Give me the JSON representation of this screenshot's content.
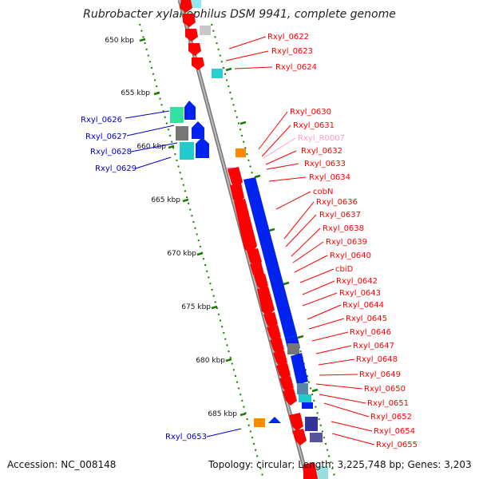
{
  "title": "Rubrobacter xylanophilus DSM 9941, complete genome",
  "accession": "Accession: NC_008148",
  "topology": "Topology: circular; Length: 3,225,748 bp; Genes: 3,203",
  "colors": {
    "forward_gene": "#ff0000",
    "reverse_gene": "#0000ff",
    "rna": "#ff66cc",
    "backbone": "#888888",
    "tick": "#1a7a00"
  },
  "scale_labels": [
    "650 kbp",
    "655 kbp",
    "660 kbp",
    "665 kbp",
    "670 kbp",
    "675 kbp",
    "680 kbp",
    "685 kbp"
  ],
  "right_labels": [
    {
      "text": "Rxyl_0622",
      "color": "#ff0000"
    },
    {
      "text": "Rxyl_0623",
      "color": "#ff0000"
    },
    {
      "text": "Rxyl_0624",
      "color": "#ff0000"
    },
    {
      "text": "Rxyl_0630",
      "color": "#ff0000"
    },
    {
      "text": "Rxyl_0631",
      "color": "#ff0000"
    },
    {
      "text": "Rxyl_R0007",
      "color": "#ff99cc"
    },
    {
      "text": "Rxyl_0632",
      "color": "#ff0000"
    },
    {
      "text": "Rxyl_0633",
      "color": "#ff0000"
    },
    {
      "text": "Rxyl_0634",
      "color": "#ff0000"
    },
    {
      "text": "cobN",
      "color": "#ff0000"
    },
    {
      "text": "Rxyl_0636",
      "color": "#ff0000"
    },
    {
      "text": "Rxyl_0637",
      "color": "#ff0000"
    },
    {
      "text": "Rxyl_0638",
      "color": "#ff0000"
    },
    {
      "text": "Rxyl_0639",
      "color": "#ff0000"
    },
    {
      "text": "Rxyl_0640",
      "color": "#ff0000"
    },
    {
      "text": "cbiD",
      "color": "#ff0000"
    },
    {
      "text": "Rxyl_0642",
      "color": "#ff0000"
    },
    {
      "text": "Rxyl_0643",
      "color": "#ff0000"
    },
    {
      "text": "Rxyl_0644",
      "color": "#ff0000"
    },
    {
      "text": "Rxyl_0645",
      "color": "#ff0000"
    },
    {
      "text": "Rxyl_0646",
      "color": "#ff0000"
    },
    {
      "text": "Rxyl_0647",
      "color": "#ff0000"
    },
    {
      "text": "Rxyl_0648",
      "color": "#ff0000"
    },
    {
      "text": "Rxyl_0649",
      "color": "#ff0000"
    },
    {
      "text": "Rxyl_0650",
      "color": "#ff0000"
    },
    {
      "text": "Rxyl_0651",
      "color": "#ff0000"
    },
    {
      "text": "Rxyl_0652",
      "color": "#ff0000"
    },
    {
      "text": "Rxyl_0654",
      "color": "#ff0000"
    },
    {
      "text": "Rxyl_0655",
      "color": "#ff0000"
    }
  ],
  "left_labels": [
    {
      "text": "Rxyl_0626",
      "color": "#0000cc"
    },
    {
      "text": "Rxyl_0627",
      "color": "#0000cc"
    },
    {
      "text": "Rxyl_0628",
      "color": "#0000cc"
    },
    {
      "text": "Rxyl_0629",
      "color": "#0000cc"
    },
    {
      "text": "Rxyl_0653",
      "color": "#0000cc"
    }
  ]
}
